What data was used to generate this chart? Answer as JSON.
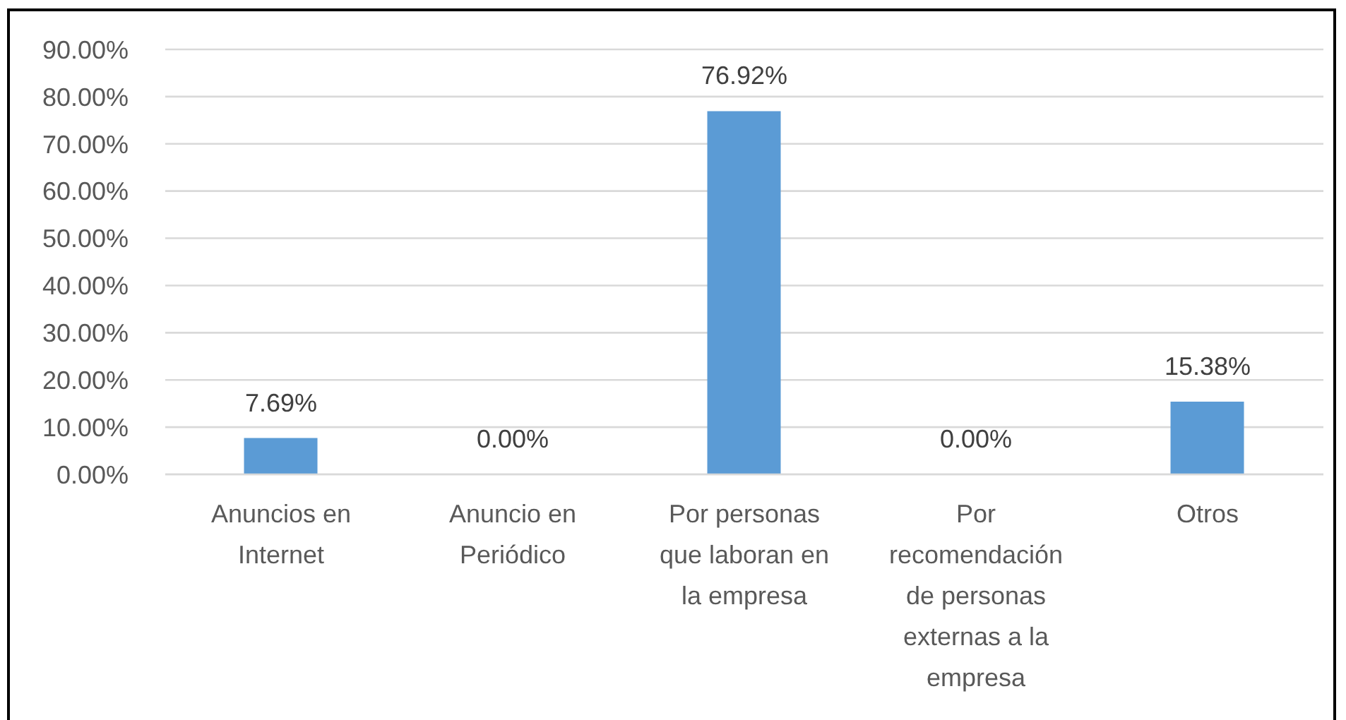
{
  "chart_data": {
    "type": "bar",
    "categories": [
      "Anuncios en Internet",
      "Anuncio en Periódico",
      "Por personas que laboran en la empresa",
      "Por recomendación de personas externas a la empresa",
      "Otros"
    ],
    "values": [
      7.69,
      0,
      76.92,
      0,
      15.38
    ],
    "value_labels": [
      "7.69%",
      "0.00%",
      "76.92%",
      "0.00%",
      "15.38%"
    ],
    "color": "#5b9bd5",
    "ylim": [
      0,
      90
    ],
    "yticks": [
      {
        "value": 0,
        "label": "0.00%"
      },
      {
        "value": 10,
        "label": "10.00%"
      },
      {
        "value": 20,
        "label": "20.00%"
      },
      {
        "value": 30,
        "label": "30.00%"
      },
      {
        "value": 40,
        "label": "40.00%"
      },
      {
        "value": 50,
        "label": "50.00%"
      },
      {
        "value": 60,
        "label": "60.00%"
      },
      {
        "value": 70,
        "label": "70.00%"
      },
      {
        "value": 80,
        "label": "80.00%"
      },
      {
        "value": 90,
        "label": "90.00%"
      }
    ],
    "grid": "y"
  }
}
